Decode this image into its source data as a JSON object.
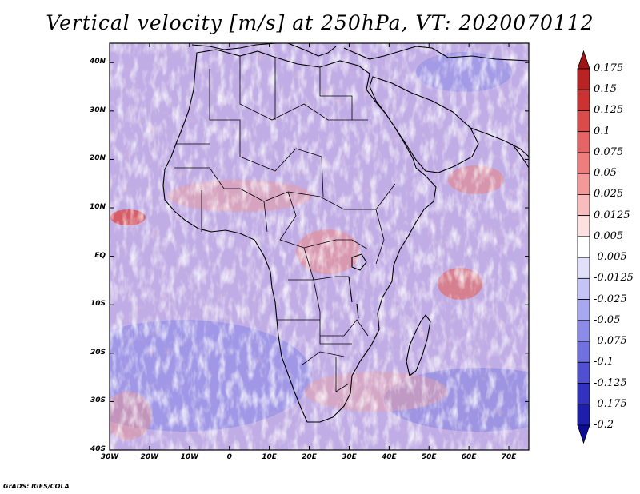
{
  "title": "Vertical velocity [m/s] at 250hPa, VT: 2020070112",
  "credit": "GrADS: IGES/COLA",
  "axes": {
    "lat_labels": [
      "40N",
      "30N",
      "20N",
      "10N",
      "EQ",
      "10S",
      "20S",
      "30S",
      "40S"
    ],
    "lat_values": [
      40,
      30,
      20,
      10,
      0,
      -10,
      -20,
      -30,
      -40
    ],
    "lon_labels": [
      "30W",
      "20W",
      "10W",
      "0",
      "10E",
      "20E",
      "30E",
      "40E",
      "50E",
      "60E",
      "70E"
    ],
    "lon_values": [
      -30,
      -20,
      -10,
      0,
      10,
      20,
      30,
      40,
      50,
      60,
      70
    ],
    "lat_range": [
      -40,
      44
    ],
    "lon_range": [
      -30,
      75
    ]
  },
  "colorbar": {
    "labels": [
      "0.175",
      "0.15",
      "0.125",
      "0.1",
      "0.075",
      "0.05",
      "0.025",
      "0.0125",
      "0.005",
      "-0.005",
      "-0.0125",
      "-0.025",
      "-0.05",
      "-0.075",
      "-0.1",
      "-0.125",
      "-0.175",
      "-0.2"
    ],
    "colors": [
      "#a01414",
      "#b92323",
      "#cd3232",
      "#dc4b4b",
      "#e66464",
      "#ee7d7d",
      "#f49999",
      "#f9bcbc",
      "#fde0e0",
      "#ffffff",
      "#e0e0fb",
      "#c4c4f6",
      "#a8a8f0",
      "#8c8ce8",
      "#7070df",
      "#5050d2",
      "#3232c0",
      "#1e1eac",
      "#0c0c96"
    ]
  },
  "chart_data": {
    "type": "heatmap",
    "variable": "Vertical velocity",
    "units": "m/s",
    "level": "250hPa",
    "valid_time": "2020070112",
    "x_axis": "longitude",
    "y_axis": "latitude",
    "xlim": [
      -30,
      75
    ],
    "ylim": [
      -40,
      44
    ],
    "levels": [
      -0.2,
      -0.175,
      -0.125,
      -0.1,
      -0.075,
      -0.05,
      -0.025,
      -0.0125,
      -0.005,
      0.005,
      0.0125,
      0.025,
      0.05,
      0.075,
      0.1,
      0.125,
      0.15,
      0.175
    ]
  }
}
